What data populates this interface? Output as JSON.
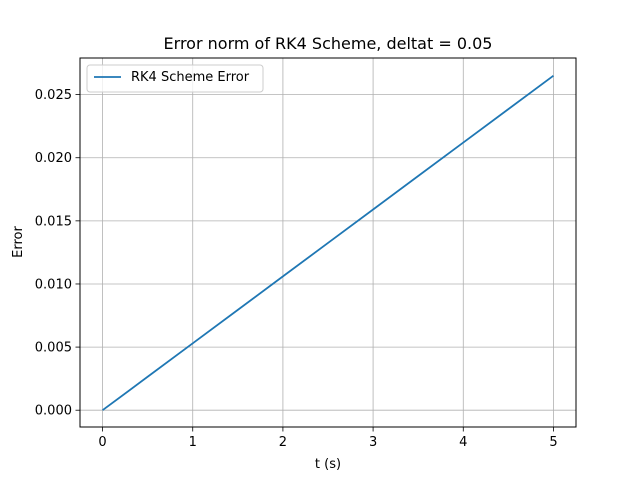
{
  "chart_data": {
    "type": "line",
    "title": "Error norm of RK4 Scheme, deltat = 0.05",
    "xlabel": "t (s)",
    "ylabel": "Error",
    "xlim": [
      -0.25,
      5.25
    ],
    "ylim": [
      -0.00133,
      0.0279
    ],
    "x_ticks": [
      0,
      1,
      2,
      3,
      4,
      5
    ],
    "x_tick_labels": [
      "0",
      "1",
      "2",
      "3",
      "4",
      "5"
    ],
    "y_ticks": [
      0.0,
      0.005,
      0.01,
      0.015,
      0.02,
      0.025
    ],
    "y_tick_labels": [
      "0.000",
      "0.005",
      "0.010",
      "0.015",
      "0.020",
      "0.025"
    ],
    "grid": true,
    "legend_position": "upper-left",
    "series": [
      {
        "name": "RK4 Scheme Error",
        "color": "#1f77b4",
        "x": [
          0,
          0.5,
          1,
          1.5,
          2,
          2.5,
          3,
          3.5,
          4,
          4.5,
          5
        ],
        "y": [
          0.0,
          0.00265,
          0.0053,
          0.00795,
          0.0106,
          0.01325,
          0.0159,
          0.01855,
          0.0212,
          0.02385,
          0.0265
        ]
      }
    ]
  }
}
